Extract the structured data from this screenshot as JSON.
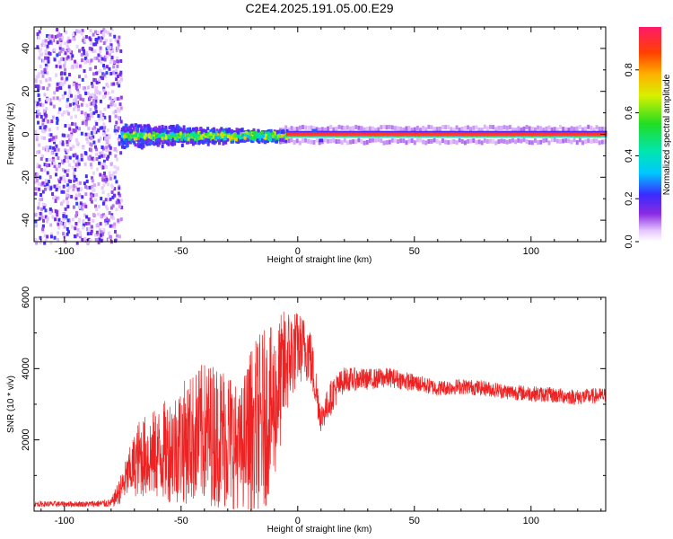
{
  "title": "C2E4.2025.191.05.00.E29",
  "chart_data": [
    {
      "type": "heatmap",
      "xlabel": "Height of straight line (km)",
      "ylabel": "Frequency (Hz)",
      "xlim": [
        -113,
        132
      ],
      "ylim": [
        -50,
        50
      ],
      "xticks": [
        -100,
        -50,
        0,
        50,
        100
      ],
      "yticks": [
        -40,
        -20,
        0,
        20,
        40
      ],
      "colorbar": {
        "label": "Normalized spectral amplitude",
        "range": [
          0,
          1
        ],
        "ticks": [
          0.0,
          0.2,
          0.4,
          0.6,
          0.8
        ],
        "tick_labels": [
          "0.0",
          "0.2",
          "0.4",
          "0.6",
          "0.8"
        ],
        "colormap": "rainbow"
      },
      "features": {
        "noise_region_x": [
          -113,
          -76
        ],
        "signal_band_frequency": 0,
        "scatter_region_x": [
          -76,
          -5
        ],
        "steady_carrier_x": [
          -5,
          132
        ]
      }
    },
    {
      "type": "line",
      "xlabel": "Height of straight line (km)",
      "ylabel": "SNR (10 * v/v)",
      "xlim": [
        -113,
        132
      ],
      "ylim": [
        0,
        6000
      ],
      "xticks": [
        -100,
        -50,
        0,
        50,
        100
      ],
      "yticks": [
        2000,
        4000,
        6000
      ],
      "series": [
        {
          "color": "#ee2222",
          "envelope": [
            {
              "x": -113,
              "mean": 200,
              "amp": 80
            },
            {
              "x": -90,
              "mean": 200,
              "amp": 80
            },
            {
              "x": -80,
              "mean": 220,
              "amp": 120
            },
            {
              "x": -76,
              "mean": 600,
              "amp": 400
            },
            {
              "x": -72,
              "mean": 1100,
              "amp": 700
            },
            {
              "x": -68,
              "mean": 1500,
              "amp": 1100
            },
            {
              "x": -60,
              "mean": 1600,
              "amp": 1300
            },
            {
              "x": -50,
              "mean": 1900,
              "amp": 1700
            },
            {
              "x": -40,
              "mean": 2200,
              "amp": 2000
            },
            {
              "x": -30,
              "mean": 2100,
              "amp": 2100
            },
            {
              "x": -25,
              "mean": 1700,
              "amp": 1600
            },
            {
              "x": -20,
              "mean": 2300,
              "amp": 2400
            },
            {
              "x": -15,
              "mean": 2500,
              "amp": 2600
            },
            {
              "x": -10,
              "mean": 3000,
              "amp": 2200
            },
            {
              "x": -5,
              "mean": 4200,
              "amp": 1600
            },
            {
              "x": 0,
              "mean": 4600,
              "amp": 1000
            },
            {
              "x": 5,
              "mean": 4500,
              "amp": 900
            },
            {
              "x": 10,
              "mean": 2600,
              "amp": 400
            },
            {
              "x": 15,
              "mean": 3300,
              "amp": 500
            },
            {
              "x": 20,
              "mean": 3700,
              "amp": 350
            },
            {
              "x": 30,
              "mean": 3700,
              "amp": 300
            },
            {
              "x": 40,
              "mean": 3750,
              "amp": 280
            },
            {
              "x": 50,
              "mean": 3600,
              "amp": 250
            },
            {
              "x": 60,
              "mean": 3450,
              "amp": 220
            },
            {
              "x": 70,
              "mean": 3500,
              "amp": 220
            },
            {
              "x": 80,
              "mean": 3450,
              "amp": 220
            },
            {
              "x": 90,
              "mean": 3350,
              "amp": 220
            },
            {
              "x": 100,
              "mean": 3300,
              "amp": 220
            },
            {
              "x": 110,
              "mean": 3250,
              "amp": 220
            },
            {
              "x": 120,
              "mean": 3200,
              "amp": 220
            },
            {
              "x": 132,
              "mean": 3250,
              "amp": 220
            }
          ]
        }
      ]
    }
  ]
}
